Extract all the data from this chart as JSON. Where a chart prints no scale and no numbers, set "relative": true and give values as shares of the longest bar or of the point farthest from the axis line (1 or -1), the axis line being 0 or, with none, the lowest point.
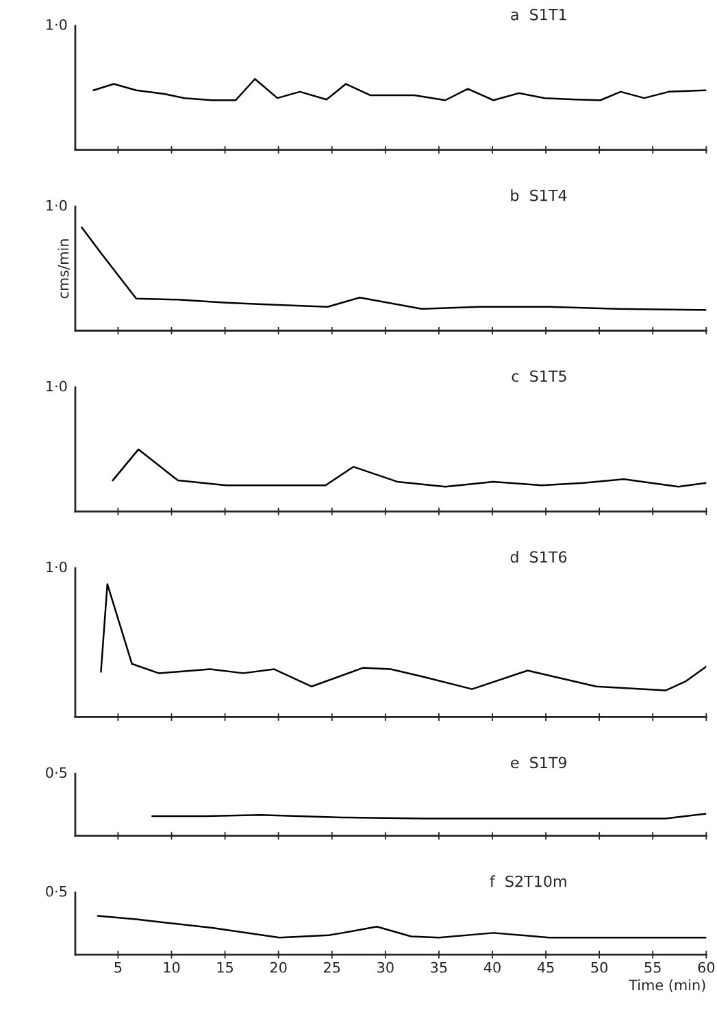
{
  "chart_data": [
    {
      "type": "line",
      "title": "a  S1T1",
      "relative": true,
      "annotations": [
        "1·0"
      ],
      "tick_labels": false,
      "xlim": [
        1,
        60
      ],
      "xticks": [
        5,
        10,
        15,
        20,
        25,
        30,
        35,
        40,
        45,
        50,
        55,
        60
      ],
      "series": [
        {
          "color": "#000000",
          "x": [
            2.7,
            4.6,
            6.7,
            9.3,
            11.2,
            13.8,
            16.0,
            17.8,
            19.9,
            22.0,
            24.5,
            26.3,
            28.6,
            30.8,
            32.7,
            35.6,
            37.7,
            40.1,
            42.5,
            44.9,
            47.8,
            50.1,
            52.0,
            54.2,
            56.5,
            60
          ],
          "values": [
            0.84,
            0.93,
            0.84,
            0.79,
            0.73,
            0.7,
            0.7,
            1,
            0.73,
            0.82,
            0.71,
            0.93,
            0.77,
            0.77,
            0.77,
            0.7,
            0.86,
            0.7,
            0.8,
            0.73,
            0.71,
            0.7,
            0.82,
            0.73,
            0.82,
            0.84
          ]
        }
      ]
    },
    {
      "type": "line",
      "title": "b  S1T4",
      "ylabel": "cms/min",
      "relative": true,
      "annotations": [
        "1·0"
      ],
      "tick_labels": false,
      "xlim": [
        1,
        60
      ],
      "xticks": [
        5,
        10,
        15,
        20,
        25,
        30,
        35,
        40,
        45,
        50,
        55,
        60
      ],
      "series": [
        {
          "color": "#000000",
          "x": [
            1.6,
            3.4,
            6.7,
            10.6,
            15.1,
            19.6,
            24.6,
            27.6,
            33.4,
            38.8,
            45.3,
            51.7,
            60
          ],
          "values": [
            1,
            0.75,
            0.31,
            0.3,
            0.27,
            0.25,
            0.23,
            0.32,
            0.21,
            0.23,
            0.23,
            0.21,
            0.2
          ]
        }
      ]
    },
    {
      "type": "line",
      "title": "c  S1T5",
      "relative": true,
      "annotations": [
        "1·0"
      ],
      "tick_labels": false,
      "xlim": [
        1,
        60
      ],
      "xticks": [
        5,
        10,
        15,
        20,
        25,
        30,
        35,
        40,
        45,
        50,
        55,
        60
      ],
      "series": [
        {
          "color": "#000000",
          "x": [
            4.5,
            6.9,
            10.6,
            15.1,
            19.6,
            24.4,
            27.0,
            31.1,
            35.6,
            40.1,
            44.6,
            48.5,
            52.3,
            57.4,
            60
          ],
          "values": [
            0.5,
            1,
            0.5,
            0.42,
            0.42,
            0.42,
            0.72,
            0.48,
            0.4,
            0.48,
            0.42,
            0.46,
            0.52,
            0.4,
            0.46
          ]
        }
      ]
    },
    {
      "type": "line",
      "title": "d  S1T6",
      "relative": true,
      "annotations": [
        "1·0"
      ],
      "tick_labels": false,
      "xlim": [
        1,
        60
      ],
      "xticks": [
        5,
        10,
        15,
        20,
        25,
        30,
        35,
        40,
        45,
        50,
        55,
        60
      ],
      "series": [
        {
          "color": "#000000",
          "x": [
            3.4,
            4.0,
            6.3,
            8.8,
            13.6,
            16.7,
            19.6,
            23.1,
            27.9,
            30.5,
            33.7,
            38.1,
            43.3,
            49.7,
            56.2,
            58.1,
            60
          ],
          "values": [
            0.34,
            1,
            0.4,
            0.33,
            0.36,
            0.33,
            0.36,
            0.23,
            0.37,
            0.36,
            0.3,
            0.21,
            0.35,
            0.23,
            0.2,
            0.27,
            0.38
          ]
        }
      ]
    },
    {
      "type": "line",
      "title": "e  S1T9",
      "relative": true,
      "annotations": [
        "0·5"
      ],
      "tick_labels": false,
      "xlim": [
        1,
        60
      ],
      "xticks": [
        5,
        10,
        15,
        20,
        25,
        30,
        35,
        40,
        45,
        50,
        55,
        60
      ],
      "series": [
        {
          "color": "#000000",
          "x": [
            8.2,
            13.2,
            18.3,
            26.0,
            33.7,
            45.3,
            56.2,
            60
          ],
          "values": [
            0.89,
            0.89,
            0.94,
            0.83,
            0.78,
            0.78,
            0.78,
            1
          ]
        }
      ]
    },
    {
      "type": "line",
      "title": "f  S2T10m",
      "xlabel": "Time (min)",
      "relative": true,
      "annotations": [
        "0·5"
      ],
      "tick_labels": "x",
      "xlim": [
        1,
        60
      ],
      "xticks": [
        5,
        10,
        15,
        20,
        25,
        30,
        35,
        40,
        45,
        50,
        55,
        60
      ],
      "series": [
        {
          "color": "#000000",
          "x": [
            3.1,
            6.7,
            9.9,
            13.8,
            20.1,
            24.7,
            26.0,
            29.2,
            32.4,
            35.0,
            40.1,
            45.3,
            51.7,
            60
          ],
          "values": [
            1,
            0.91,
            0.81,
            0.69,
            0.44,
            0.5,
            0.56,
            0.72,
            0.47,
            0.44,
            0.56,
            0.44,
            0.44,
            0.44
          ]
        }
      ]
    }
  ]
}
